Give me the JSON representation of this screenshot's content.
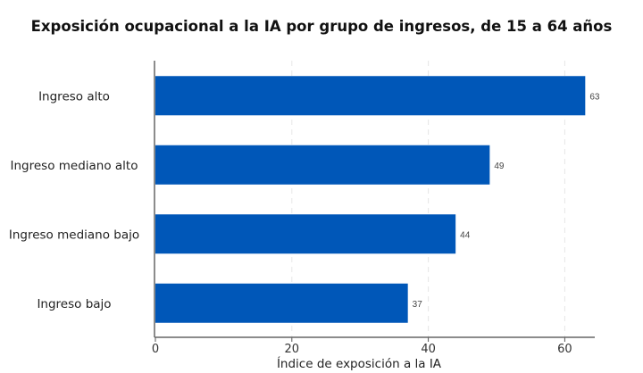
{
  "chart_data": {
    "type": "bar",
    "orientation": "horizontal",
    "title": "Exposición ocupacional a la IA por grupo de ingresos, de 15 a 64 años",
    "categories": [
      "Ingreso alto",
      "Ingreso mediano alto",
      "Ingreso mediano bajo",
      "Ingreso bajo"
    ],
    "values": [
      63,
      49,
      44,
      37
    ],
    "data_labels": [
      "63",
      "49",
      "44",
      "37"
    ],
    "xlabel": "Índice de exposición a la IA",
    "ylabel": "",
    "xlim": [
      0,
      64.5
    ],
    "xticks": [
      0,
      20,
      40,
      60
    ],
    "xtick_labels": [
      "0",
      "20",
      "40",
      "60"
    ],
    "grid": "vertical dashed",
    "color": "#0057b8"
  }
}
